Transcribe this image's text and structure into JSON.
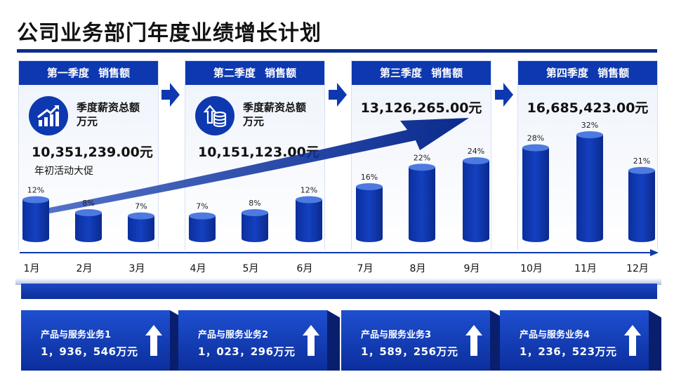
{
  "title": "公司业务部门年度业绩增长计划",
  "colors": {
    "accent": "#0d38b0",
    "dark": "#0b2e8a",
    "light_panel": "#eef3fb"
  },
  "quarters": [
    {
      "label": "第一季度",
      "sub_label": "销售额",
      "metric_line1": "季度薪资总额",
      "metric_line2": "万元",
      "amount": "10,351,239.00元",
      "note": "年初活动大促",
      "icon": "growth-chart-icon"
    },
    {
      "label": "第二季度",
      "sub_label": "销售额",
      "metric_line1": "季度薪资总额",
      "metric_line2": "万元",
      "amount": "10,151,123.00元",
      "icon": "coins-growth-icon"
    },
    {
      "label": "第三季度",
      "sub_label": "销售额",
      "amount": "13,126,265.00元"
    },
    {
      "label": "第四季度",
      "sub_label": "销售额",
      "amount": "16,685,423.00元"
    }
  ],
  "chart_data": {
    "type": "bar",
    "categories": [
      "1月",
      "2月",
      "3月",
      "4月",
      "5月",
      "6月",
      "7月",
      "8月",
      "9月",
      "10月",
      "11月",
      "12月"
    ],
    "values": [
      12,
      8,
      7,
      7,
      8,
      12,
      16,
      22,
      24,
      28,
      32,
      21
    ],
    "value_labels": [
      "12%",
      "8%",
      "7%",
      "7%",
      "8%",
      "12%",
      "16%",
      "22%",
      "24%",
      "28%",
      "32%",
      "21%"
    ],
    "unit": "%",
    "title": "",
    "xlabel": "",
    "ylabel": "",
    "ylim": [
      0,
      35
    ],
    "grid": false,
    "legend": "none",
    "style": "3d-cylinder"
  },
  "products": [
    {
      "name": "产品与服务业务1",
      "value": "1，936，546万元"
    },
    {
      "name": "产品与服务业务2",
      "value": "1，023，296万元"
    },
    {
      "name": "产品与服务业务3",
      "value": "1，589，256万元"
    },
    {
      "name": "产品与服务业务4",
      "value": "1，236，523万元"
    }
  ]
}
